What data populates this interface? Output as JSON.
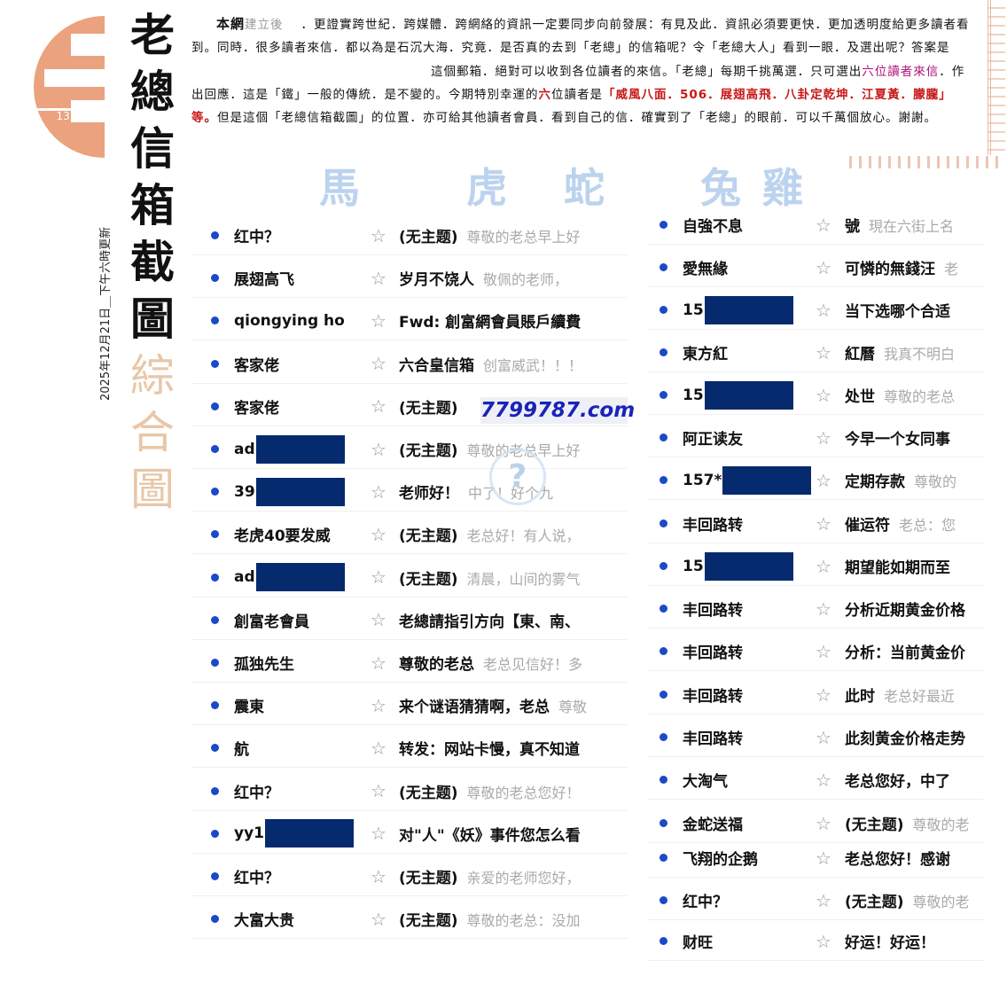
{
  "logo": {
    "number": "132",
    "color": "#eba27e"
  },
  "title": [
    "老",
    "總",
    "信",
    "箱",
    "截",
    "圖"
  ],
  "subtitle": [
    "綜",
    "合",
    "圖"
  ],
  "date": "2025年12月21日＿下午六時更新",
  "intro": {
    "brand": "本網",
    "brand2": "建立後",
    "p1": "．更證實跨世紀．跨媒體．跨網絡的資訊一定要同步向前發展：有見及此．資訊必須要更快．更加透明度給更多讀者看到。同時．很多讀者來信．都以為是石沉大海．究竟．是否真的去到「老總」的信箱呢？令「老總大人」看到一眼．及選出呢？答案是",
    "p2": "這個郵箱．絕對可以收到各位讀者的來信。「老總」每期千挑萬選．只可選出",
    "highlight1": "六位讀者來信",
    "p3": "．作出回應．這是「鐵」一般的傳統．是不變的。今期特別幸運的",
    "highlight2": "六",
    "p4": "位讀者是",
    "winners": "「威風八面．506．展翅高飛．八卦定乾坤．江夏黃．朦朧」等。",
    "p5": "但是這個「老總信箱截圖」的位置．亦可給其他讀者會員．看到自己的信．確實到了「老總」的眼前．可以千萬個放心。謝謝。",
    "colors": {
      "highlight": "#b0107a",
      "winners": "#c81818"
    }
  },
  "zodiac": [
    "馬",
    "虎",
    "蛇",
    "兔",
    "雞"
  ],
  "watermark": "7799787.com",
  "left_rows": [
    {
      "name": "红中？",
      "redacted": false,
      "subject": "(无主题)",
      "preview": "尊敬的老总早上好"
    },
    {
      "name": "展翅高飞",
      "redacted": false,
      "subject": "岁月不饶人",
      "preview": "敬佩的老师，",
      "subject_bold": true
    },
    {
      "name": "qiongying ho",
      "redacted": false,
      "subject": "Fwd: 創富網會員賬戶續費",
      "preview": ""
    },
    {
      "name": "客家佬",
      "redacted": false,
      "subject": "六合皇信箱",
      "preview": "创富威武！！！"
    },
    {
      "name": "客家佬",
      "redacted": false,
      "subject": "(无主题)",
      "preview": ""
    },
    {
      "name": "ad",
      "redacted": true,
      "subject": "(无主题)",
      "preview": "尊敬的老总早上好"
    },
    {
      "name": "39",
      "redacted": true,
      "subject": "老师好！",
      "preview": "中了！好个九"
    },
    {
      "name": "老虎40要发威",
      "redacted": false,
      "subject": "(无主题)",
      "preview": "老总好！有人说，"
    },
    {
      "name": "ad",
      "redacted": true,
      "subject": "(无主题)",
      "preview": "清晨，山间的雾气"
    },
    {
      "name": "創富老會員",
      "redacted": false,
      "subject": "老總請指引方向【東、南、",
      "preview": ""
    },
    {
      "name": "孤独先生",
      "redacted": false,
      "subject": "尊敬的老总",
      "preview": "老总见信好！多"
    },
    {
      "name": "震東",
      "redacted": false,
      "subject": "来个谜语猜猜啊，老总",
      "preview": "尊敬"
    },
    {
      "name": "航",
      "redacted": false,
      "subject": "转发：网站卡慢，真不知道",
      "preview": ""
    },
    {
      "name": "红中？",
      "redacted": false,
      "subject": "(无主题)",
      "preview": "尊敬的老总您好！"
    },
    {
      "name": "yy1",
      "redacted": true,
      "subject": "对\"人\"《妖》事件您怎么看",
      "preview": ""
    },
    {
      "name": "红中？",
      "redacted": false,
      "subject": "(无主题)",
      "preview": "亲爱的老师您好，"
    },
    {
      "name": "大富大贵",
      "redacted": false,
      "subject": "(无主题)",
      "preview": "尊敬的老总：没加"
    }
  ],
  "right_rows": [
    {
      "name": "自強不息",
      "redacted": false,
      "subject": "號",
      "preview": "現在六街上名"
    },
    {
      "name": "愛無緣",
      "redacted": false,
      "subject": "可憐的無錢汪",
      "preview": "老"
    },
    {
      "name": "15",
      "redacted": true,
      "subject": "当下选哪个合适",
      "preview": ""
    },
    {
      "name": "東方紅",
      "redacted": false,
      "subject": "紅曆",
      "preview": "我真不明白"
    },
    {
      "name": "15",
      "redacted": true,
      "subject": "处世",
      "preview": "尊敬的老总"
    },
    {
      "name": "阿正读友",
      "redacted": false,
      "subject": "今早一个女同事",
      "preview": ""
    },
    {
      "name": "157*",
      "redacted": true,
      "subject": "定期存款",
      "preview": "尊敬的"
    },
    {
      "name": "丰回路转",
      "redacted": false,
      "subject": "催运符",
      "preview": "老总：您"
    },
    {
      "name": "15",
      "redacted": true,
      "subject": "期望能如期而至",
      "preview": ""
    },
    {
      "name": "丰回路转",
      "redacted": false,
      "subject": "分析近期黄金价格",
      "preview": ""
    },
    {
      "name": "丰回路转",
      "redacted": false,
      "subject": "分析：当前黄金价",
      "preview": ""
    },
    {
      "name": "丰回路转",
      "redacted": false,
      "subject": "此时",
      "preview": "老总好最近"
    },
    {
      "name": "丰回路转",
      "redacted": false,
      "subject": "此刻黄金价格走势",
      "preview": ""
    },
    {
      "name": "大淘气",
      "redacted": false,
      "subject": "老总您好，中了",
      "preview": ""
    },
    {
      "name": "金蛇送福",
      "redacted": false,
      "subject": "(无主题)",
      "preview": "尊敬的老"
    },
    {
      "name": "飞翔的企鹅",
      "redacted": false,
      "subject": "老总您好！感谢",
      "preview": ""
    },
    {
      "name": "红中？",
      "redacted": false,
      "subject": "(无主题)",
      "preview": "尊敬的老"
    },
    {
      "name": "财旺",
      "redacted": false,
      "subject": "好运！好运！",
      "preview": ""
    }
  ]
}
